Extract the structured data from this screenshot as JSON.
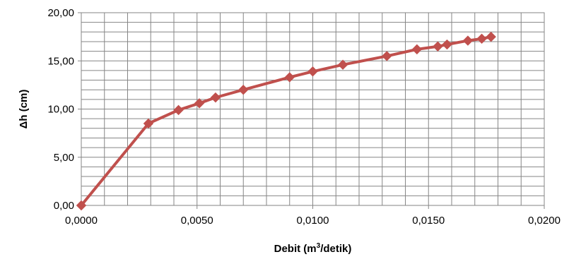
{
  "chart_data": {
    "type": "line",
    "title": "",
    "xlabel": "Debit (m",
    "xlabel_sup": "3",
    "xlabel_suffix": "/detik)",
    "ylabel": "Δh (cm)",
    "xlim": [
      0,
      0.02
    ],
    "ylim": [
      0,
      20
    ],
    "grid": true,
    "grid_minor_x_step": 0.001,
    "grid_minor_y_step": 1,
    "x_ticks": [
      0,
      0.005,
      0.01,
      0.015,
      0.02
    ],
    "x_tick_labels": [
      "0,0000",
      "0,0050",
      "0,0100",
      "0,0150",
      "0,0200"
    ],
    "y_ticks": [
      0,
      5,
      10,
      15,
      20
    ],
    "y_tick_labels": [
      "0,00",
      "5,00",
      "10,00",
      "15,00",
      "20,00"
    ],
    "series": [
      {
        "color": "#C0504D",
        "marker": "diamond",
        "x": [
          0.0,
          0.0029,
          0.0042,
          0.0051,
          0.0058,
          0.007,
          0.009,
          0.01,
          0.0113,
          0.0132,
          0.0145,
          0.0154,
          0.0158,
          0.0167,
          0.0173,
          0.0177
        ],
        "y": [
          0.0,
          8.5,
          9.9,
          10.6,
          11.2,
          12.0,
          13.3,
          13.9,
          14.6,
          15.5,
          16.2,
          16.5,
          16.7,
          17.1,
          17.3,
          17.5
        ]
      }
    ]
  }
}
